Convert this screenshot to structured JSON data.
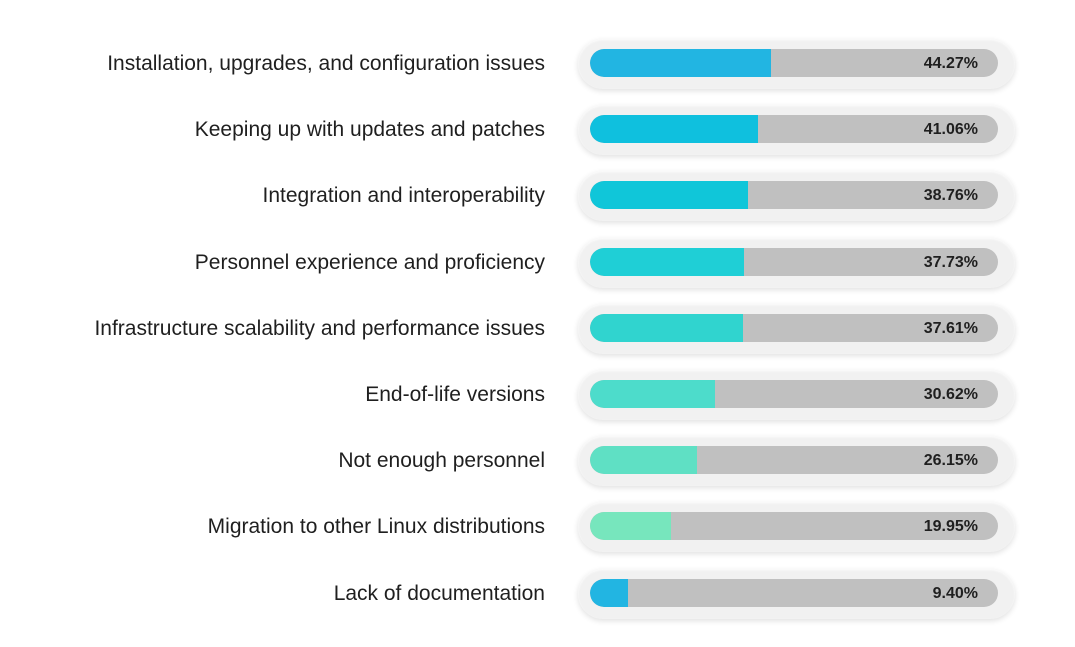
{
  "chart_data": {
    "type": "bar",
    "orientation": "horizontal",
    "categories": [
      "Installation, upgrades, and configuration issues",
      "Keeping up with updates and patches",
      "Integration and interoperability",
      "Personnel experience and proficiency",
      "Infrastructure scalability and performance issues",
      "End-of-life versions",
      "Not enough personnel",
      "Migration to other Linux distributions",
      "Lack of documentation"
    ],
    "values": [
      44.27,
      41.06,
      38.76,
      37.73,
      37.61,
      30.62,
      26.15,
      19.95,
      9.4
    ],
    "value_labels": [
      "44.27%",
      "41.06%",
      "38.76%",
      "37.73%",
      "37.61%",
      "30.62%",
      "26.15%",
      "19.95%",
      "9.40%"
    ],
    "xlim": [
      0,
      100
    ],
    "track_color": "#c0c0c0",
    "colors": [
      "#22b5e2",
      "#0fc0de",
      "#10c6d9",
      "#1fcfd6",
      "#30d4cf",
      "#4ddccb",
      "#5fe0c4",
      "#77e6bd",
      "#22b5e2"
    ],
    "grid": false,
    "legend": "none"
  }
}
